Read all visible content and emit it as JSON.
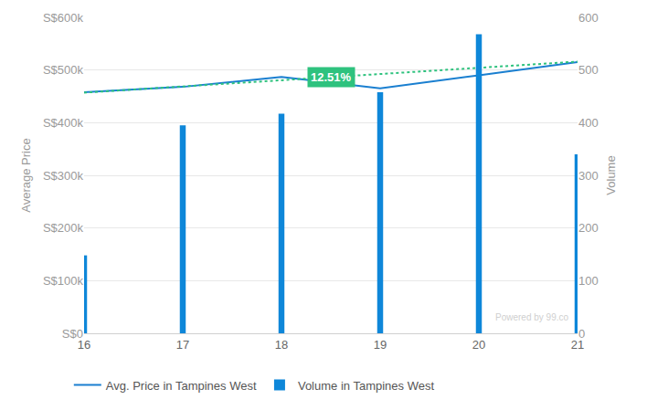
{
  "chart_data": {
    "type": "line",
    "x": [
      16,
      17,
      18,
      19,
      20,
      21
    ],
    "xlim": [
      16,
      21
    ],
    "xticks": [
      16,
      17,
      18,
      19,
      20,
      21
    ],
    "y_label": "Average Price",
    "y2_label": "Volume",
    "ylim": [
      0,
      600000
    ],
    "yticks": [
      {
        "value": 0,
        "label": "S$0"
      },
      {
        "value": 100000,
        "label": "S$100k"
      },
      {
        "value": 200000,
        "label": "S$200k"
      },
      {
        "value": 300000,
        "label": "S$300k"
      },
      {
        "value": 400000,
        "label": "S$400k"
      },
      {
        "value": 500000,
        "label": "S$500k"
      },
      {
        "value": 600000,
        "label": "S$600k"
      }
    ],
    "y2lim": [
      0,
      600
    ],
    "y2ticks": [
      0,
      100,
      200,
      300,
      400,
      500,
      600
    ],
    "grid": true,
    "legend": "bottom",
    "series": [
      {
        "name": "Avg. Price in Tampines West",
        "type": "line",
        "color": "#1a7fd0",
        "values": [
          458000,
          468000,
          487000,
          465000,
          490000,
          515000
        ]
      },
      {
        "name": "Volume in Tampines West",
        "type": "bar",
        "axis": "y2",
        "color": "#0e87d9",
        "values": [
          148,
          395,
          417,
          458,
          568,
          340
        ]
      },
      {
        "type": "line",
        "color": "#2ec27e",
        "line_style": "dotted",
        "values": [
          457000,
          469000,
          481000,
          493000,
          504000,
          516000
        ]
      }
    ],
    "annotations": [
      "12.51%"
    ],
    "watermark": "Powered by 99.co"
  }
}
